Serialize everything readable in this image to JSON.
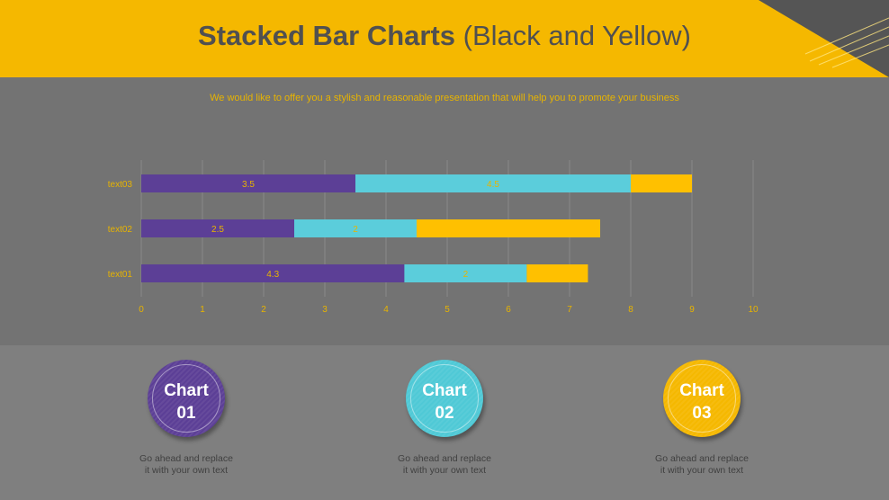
{
  "header": {
    "title_bold": "Stacked Bar Charts",
    "title_rest": "(Black and Yellow)"
  },
  "subtitle": "We would like to offer you a stylish and reasonable presentation that will help you to promote your business",
  "colors": {
    "purple": "#5c3f96",
    "cyan": "#5bcddb",
    "yellow": "#ffc000",
    "text": "#e8b400",
    "header": "#f5b800"
  },
  "chart_data": {
    "type": "bar",
    "orientation": "horizontal",
    "stacked": true,
    "categories": [
      "text01",
      "text02",
      "text03"
    ],
    "series": [
      {
        "values": [
          4.3,
          2.5,
          3.5
        ],
        "color": "#5c3f96",
        "labels": [
          "4.3",
          "2.5",
          "3.5"
        ]
      },
      {
        "values": [
          2,
          2,
          4.5
        ],
        "color": "#5bcddb",
        "labels": [
          "2",
          "2",
          "4.5"
        ]
      },
      {
        "values": [
          1,
          3,
          1
        ],
        "color": "#ffc000",
        "labels": [
          "",
          "",
          ""
        ]
      }
    ],
    "xlim": [
      0,
      10
    ],
    "xticks": [
      "0",
      "1",
      "2",
      "3",
      "4",
      "5",
      "6",
      "7",
      "8",
      "9",
      "10"
    ],
    "grid": true,
    "legend": "none"
  },
  "cards": [
    {
      "line1": "Chart",
      "line2": "01",
      "desc1": "Go ahead and replace",
      "desc2": "it with your own text",
      "color": "#5c3f96"
    },
    {
      "line1": "Chart",
      "line2": "02",
      "desc1": "Go ahead and replace",
      "desc2": "it with your own text",
      "color": "#4fc9d6"
    },
    {
      "line1": "Chart",
      "line2": "03",
      "desc1": "Go ahead and replace",
      "desc2": "it with your own text",
      "color": "#f5b800"
    }
  ]
}
